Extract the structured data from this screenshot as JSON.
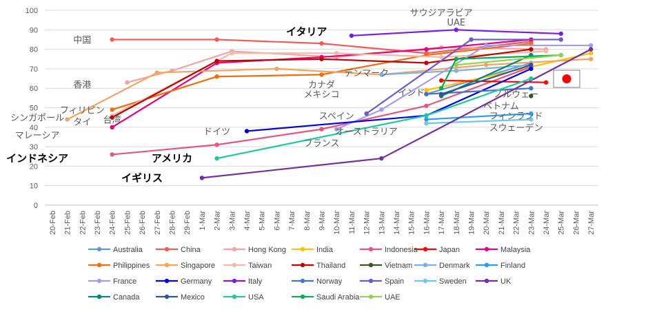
{
  "chart_data": {
    "type": "line",
    "ylim": [
      0,
      100
    ],
    "yticks": [
      0,
      10,
      20,
      30,
      40,
      50,
      60,
      70,
      80,
      90,
      100
    ],
    "grid": "horizontal",
    "legend_position": "bottom",
    "categories": [
      "20-Feb",
      "21-Feb",
      "22-Feb",
      "23-Feb",
      "24-Feb",
      "25-Feb",
      "26-Feb",
      "27-Feb",
      "28-Feb",
      "29-Feb",
      "1-Mar",
      "2-Mar",
      "3-Mar",
      "4-Mar",
      "5-Mar",
      "6-Mar",
      "7-Mar",
      "8-Mar",
      "9-Mar",
      "10-Mar",
      "11-Mar",
      "12-Mar",
      "13-Mar",
      "14-Mar",
      "15-Mar",
      "16-Mar",
      "17-Mar",
      "18-Mar",
      "19-Mar",
      "20-Mar",
      "21-Mar",
      "22-Mar",
      "23-Mar",
      "24-Mar",
      "25-Mar",
      "26-Mar",
      "27-Mar"
    ],
    "series": [
      {
        "name": "Australia",
        "color": "#5b9bd5",
        "points": [
          [
            "16-Mar",
            57
          ],
          [
            "23-Mar",
            73
          ]
        ]
      },
      {
        "name": "China",
        "color": "#ef5a5a",
        "points": [
          [
            "24-Feb",
            85
          ],
          [
            "2-Mar",
            85
          ],
          [
            "9-Mar",
            83
          ],
          [
            "16-Mar",
            78
          ],
          [
            "23-Mar",
            84
          ]
        ]
      },
      {
        "name": "Hong Kong",
        "color": "#f4a3a3",
        "points": [
          [
            "25-Feb",
            63
          ],
          [
            "28-Feb",
            69
          ],
          [
            "3-Mar",
            79
          ],
          [
            "10-Mar",
            76
          ],
          [
            "17-Mar",
            81
          ],
          [
            "24-Mar",
            80
          ]
        ]
      },
      {
        "name": "India",
        "color": "#ffc000",
        "points": [
          [
            "16-Mar",
            59
          ],
          [
            "23-Mar",
            71
          ],
          [
            "27-Mar",
            78
          ]
        ]
      },
      {
        "name": "Indonesia",
        "color": "#e75480",
        "points": [
          [
            "24-Feb",
            26
          ],
          [
            "2-Mar",
            31
          ],
          [
            "9-Mar",
            39
          ],
          [
            "16-Mar",
            51
          ],
          [
            "23-Mar",
            71
          ]
        ]
      },
      {
        "name": "Japan",
        "color": "#ff0000",
        "points": [
          [
            "17-Mar",
            64
          ],
          [
            "24-Mar",
            63
          ]
        ]
      },
      {
        "name": "Malaysia",
        "color": "#e5007e",
        "points": [
          [
            "24-Feb",
            40
          ],
          [
            "2-Mar",
            73
          ],
          [
            "9-Mar",
            76
          ],
          [
            "16-Mar",
            80
          ],
          [
            "23-Mar",
            85
          ]
        ]
      },
      {
        "name": "Philippines",
        "color": "#f26c0f",
        "points": [
          [
            "24-Feb",
            49
          ],
          [
            "2-Mar",
            66
          ],
          [
            "9-Mar",
            67
          ],
          [
            "16-Mar",
            77
          ],
          [
            "23-Mar",
            83
          ]
        ]
      },
      {
        "name": "Singapore",
        "color": "#f4a460",
        "points": [
          [
            "21-Feb",
            44
          ],
          [
            "27-Feb",
            68
          ],
          [
            "6-Mar",
            70
          ],
          [
            "13-Mar",
            67
          ],
          [
            "20-Mar",
            72
          ],
          [
            "27-Mar",
            75
          ]
        ]
      },
      {
        "name": "Taiwan",
        "color": "#f2b8a8",
        "points": [
          [
            "24-Feb",
            46
          ],
          [
            "3-Mar",
            78
          ],
          [
            "10-Mar",
            78
          ],
          [
            "17-Mar",
            76
          ],
          [
            "24-Mar",
            79
          ]
        ]
      },
      {
        "name": "Thailand",
        "color": "#c00000",
        "points": [
          [
            "24-Feb",
            45
          ],
          [
            "2-Mar",
            74
          ],
          [
            "9-Mar",
            75
          ],
          [
            "16-Mar",
            73
          ],
          [
            "23-Mar",
            80
          ]
        ]
      },
      {
        "name": "Vietnam",
        "color": "#375623",
        "points": [
          [
            "23-Mar",
            56
          ]
        ]
      },
      {
        "name": "Denmark",
        "color": "#7fb1e0",
        "points": [
          [
            "13-Mar",
            67
          ],
          [
            "18-Mar",
            69
          ],
          [
            "23-Mar",
            72
          ]
        ]
      },
      {
        "name": "Finland",
        "color": "#2e9bf0",
        "points": [
          [
            "16-Mar",
            44
          ],
          [
            "23-Mar",
            47
          ]
        ]
      },
      {
        "name": "France",
        "color": "#a39cf2",
        "points": [
          [
            "10-Mar",
            39
          ],
          [
            "13-Mar",
            49
          ],
          [
            "20-Mar",
            82
          ],
          [
            "27-Mar",
            82
          ]
        ]
      },
      {
        "name": "Germany",
        "color": "#0000e6",
        "points": [
          [
            "4-Mar",
            38
          ],
          [
            "16-Mar",
            46
          ],
          [
            "23-Mar",
            70
          ]
        ]
      },
      {
        "name": "Italy",
        "color": "#7a1de0",
        "points": [
          [
            "11-Mar",
            87
          ],
          [
            "18-Mar",
            90
          ],
          [
            "25-Mar",
            88
          ]
        ]
      },
      {
        "name": "Norway",
        "color": "#4472c4",
        "points": [
          [
            "16-Mar",
            57
          ],
          [
            "23-Mar",
            60
          ]
        ]
      },
      {
        "name": "Spain",
        "color": "#6a5acd",
        "points": [
          [
            "12-Mar",
            47
          ],
          [
            "19-Mar",
            85
          ],
          [
            "25-Mar",
            85
          ]
        ]
      },
      {
        "name": "Sweden",
        "color": "#6ec6f0",
        "points": [
          [
            "16-Mar",
            42
          ],
          [
            "23-Mar",
            44
          ]
        ]
      },
      {
        "name": "UK",
        "color": "#7030a0",
        "points": [
          [
            "1-Mar",
            14
          ],
          [
            "13-Mar",
            24
          ],
          [
            "27-Mar",
            80
          ]
        ]
      },
      {
        "name": "Canada",
        "color": "#00827f",
        "points": [
          [
            "17-Mar",
            56
          ],
          [
            "23-Mar",
            77
          ]
        ]
      },
      {
        "name": "Mexico",
        "color": "#2f5597",
        "points": [
          [
            "17-Mar",
            57
          ],
          [
            "23-Mar",
            72
          ]
        ]
      },
      {
        "name": "USA",
        "color": "#1cc8a0",
        "points": [
          [
            "2-Mar",
            24
          ],
          [
            "16-Mar",
            46
          ],
          [
            "23-Mar",
            65
          ]
        ]
      },
      {
        "name": "Saudi Arabia",
        "color": "#00b050",
        "points": [
          [
            "17-Mar",
            60
          ],
          [
            "18-Mar",
            75
          ],
          [
            "25-Mar",
            77
          ]
        ]
      },
      {
        "name": "UAE",
        "color": "#92d050",
        "points": [
          [
            "18-Mar",
            72
          ],
          [
            "25-Mar",
            77
          ]
        ]
      }
    ],
    "annotations": [
      {
        "text": "中国",
        "x": "22-Feb",
        "y": 85,
        "color": "#595959",
        "bold": false
      },
      {
        "text": "イタリア",
        "x": "8-Mar",
        "y": 89,
        "color": "#000000",
        "bold": true
      },
      {
        "text": "サウジアラビア",
        "x": "17-Mar",
        "y": 99,
        "color": "#595959",
        "bold": false
      },
      {
        "text": "UAE",
        "x": "18-Mar",
        "y": 94,
        "color": "#595959",
        "bold": false
      },
      {
        "text": "香港",
        "x": "22-Feb",
        "y": 62,
        "color": "#595959",
        "bold": false
      },
      {
        "text": "デンマーク",
        "x": "12-Mar",
        "y": 68,
        "color": "#595959",
        "bold": false
      },
      {
        "text": "カナダ",
        "x": "9-Mar",
        "y": 62,
        "color": "#595959",
        "bold": false
      },
      {
        "text": "インド",
        "x": "15-Mar",
        "y": 58,
        "color": "#595959",
        "bold": false
      },
      {
        "text": "メキシコ",
        "x": "9-Mar",
        "y": 57,
        "color": "#595959",
        "bold": false
      },
      {
        "text": "ノルウェー",
        "x": "22-Mar",
        "y": 57,
        "color": "#595959",
        "bold": false
      },
      {
        "text": "ベトナム",
        "x": "21-Mar",
        "y": 51,
        "color": "#595959",
        "bold": false
      },
      {
        "text": "フィリピン",
        "x": "22-Feb",
        "y": 49,
        "color": "#595959",
        "bold": false
      },
      {
        "text": "シンガポール",
        "x": "19-Feb",
        "y": 45,
        "color": "#595959",
        "bold": false
      },
      {
        "text": "タイ",
        "x": "22-Feb",
        "y": 43,
        "color": "#595959",
        "bold": false
      },
      {
        "text": "台湾",
        "x": "24-Feb",
        "y": 44,
        "color": "#595959",
        "bold": false
      },
      {
        "text": "スペイン",
        "x": "10-Mar",
        "y": 46,
        "color": "#595959",
        "bold": false
      },
      {
        "text": "フィンランド",
        "x": "22-Mar",
        "y": 46,
        "color": "#595959",
        "bold": false
      },
      {
        "text": "マレーシア",
        "x": "19-Feb",
        "y": 36,
        "color": "#595959",
        "bold": false
      },
      {
        "text": "ドイツ",
        "x": "2-Mar",
        "y": 38,
        "color": "#595959",
        "bold": false
      },
      {
        "text": "オーストラリア",
        "x": "12-Mar",
        "y": 38,
        "color": "#595959",
        "bold": false
      },
      {
        "text": "スウェーデン",
        "x": "22-Mar",
        "y": 40,
        "color": "#595959",
        "bold": false
      },
      {
        "text": "フランス",
        "x": "9-Mar",
        "y": 32,
        "color": "#595959",
        "bold": false
      },
      {
        "text": "インドネシア",
        "x": "18-Feb",
        "y": 24,
        "color": "#000000",
        "bold": true
      },
      {
        "text": "アメリカ",
        "x": "28-Feb",
        "y": 24,
        "color": "#000000",
        "bold": true
      },
      {
        "text": "イギリス",
        "x": "26-Feb",
        "y": 14,
        "color": "#000000",
        "bold": true
      }
    ]
  },
  "flag_icon": "japan-flag-icon"
}
